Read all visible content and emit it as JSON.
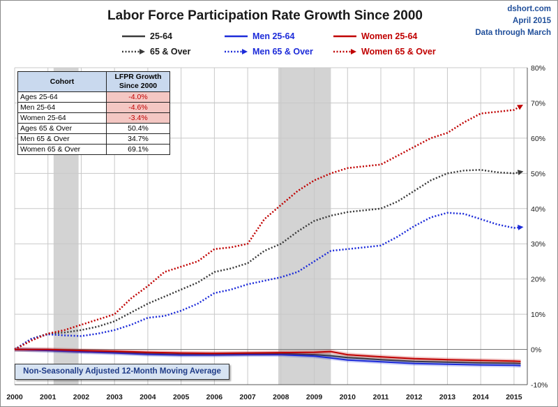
{
  "header": {
    "title": "Labor Force Participation Rate Growth Since 2000",
    "source": "dshort.com",
    "date": "April 2015",
    "data_through": "Data through March"
  },
  "colors": {
    "all": "#3a3a3a",
    "men": "#1c2bd9",
    "women": "#c00000",
    "recession": "#d3d3d3",
    "table_header": "#c9d9ee",
    "negative_cell": "#f4c7c3"
  },
  "legend": [
    {
      "label": "25-64",
      "color": "#3a3a3a",
      "style": "solid"
    },
    {
      "label": "Men 25-64",
      "color": "#1c2bd9",
      "style": "solid"
    },
    {
      "label": "Women 25-64",
      "color": "#c00000",
      "style": "solid"
    },
    {
      "label": "65 & Over",
      "color": "#3a3a3a",
      "style": "dotted"
    },
    {
      "label": "Men 65 & Over",
      "color": "#1c2bd9",
      "style": "dotted"
    },
    {
      "label": "Women 65 & Over",
      "color": "#c00000",
      "style": "dotted"
    }
  ],
  "table": {
    "headers": [
      "Cohort",
      "LFPR Growth Since 2000"
    ],
    "rows": [
      {
        "cohort": "Ages 25-64",
        "value": "-4.0%",
        "negative": true
      },
      {
        "cohort": "Men 25-64",
        "value": "-4.6%",
        "negative": true
      },
      {
        "cohort": "Women 25-64",
        "value": "-3.4%",
        "negative": true
      },
      {
        "cohort": "Ages 65 & Over",
        "value": "50.4%",
        "negative": false
      },
      {
        "cohort": "Men 65 & Over",
        "value": "34.7%",
        "negative": false
      },
      {
        "cohort": "Women 65 & Over",
        "value": "69.1%",
        "negative": false
      }
    ]
  },
  "note": "Non-Seasonally Adjusted 12-Month Moving Average",
  "chart_data": {
    "type": "line",
    "title": "Labor Force Participation Rate Growth Since 2000",
    "xlabel": "",
    "ylabel": "",
    "xlim": [
      2000,
      2015.4
    ],
    "ylim": [
      -10,
      80
    ],
    "xticks": [
      "2000",
      "2001",
      "2002",
      "2003",
      "2004",
      "2005",
      "2006",
      "2007",
      "2008",
      "2009",
      "2010",
      "2011",
      "2012",
      "2013",
      "2014",
      "2015"
    ],
    "yticks": [
      "-10%",
      "0%",
      "10%",
      "20%",
      "30%",
      "40%",
      "50%",
      "60%",
      "70%",
      "80%"
    ],
    "grid": true,
    "recessions": [
      [
        2001.17,
        2001.92
      ],
      [
        2007.92,
        2009.5
      ]
    ],
    "series": [
      {
        "name": "25-64",
        "color": "#3a3a3a",
        "style": "solid",
        "arrow": false,
        "x": [
          2000,
          2001,
          2002,
          2003,
          2004,
          2005,
          2006,
          2007,
          2008,
          2009,
          2009.5,
          2010,
          2011,
          2012,
          2013,
          2014,
          2015,
          2015.2
        ],
        "y": [
          0,
          -0.2,
          -0.5,
          -0.8,
          -1.2,
          -1.4,
          -1.4,
          -1.3,
          -1.2,
          -1.5,
          -1.8,
          -2.3,
          -2.9,
          -3.4,
          -3.6,
          -3.8,
          -3.9,
          -4.0
        ]
      },
      {
        "name": "Men 25-64",
        "color": "#1c2bd9",
        "style": "solid",
        "arrow": false,
        "x": [
          2000,
          2001,
          2002,
          2003,
          2004,
          2005,
          2006,
          2007,
          2008,
          2009,
          2009.5,
          2010,
          2011,
          2012,
          2013,
          2014,
          2015,
          2015.2
        ],
        "y": [
          0,
          -0.3,
          -0.7,
          -1.0,
          -1.4,
          -1.6,
          -1.6,
          -1.5,
          -1.5,
          -1.9,
          -2.4,
          -3.0,
          -3.5,
          -4.0,
          -4.2,
          -4.4,
          -4.5,
          -4.6
        ]
      },
      {
        "name": "Women 25-64",
        "color": "#c00000",
        "style": "solid",
        "arrow": false,
        "x": [
          2000,
          2001,
          2002,
          2003,
          2004,
          2005,
          2006,
          2007,
          2008,
          2009,
          2009.5,
          2010,
          2011,
          2012,
          2013,
          2014,
          2015,
          2015.2
        ],
        "y": [
          0,
          0,
          -0.3,
          -0.5,
          -0.8,
          -1.0,
          -1.1,
          -1.0,
          -0.9,
          -0.8,
          -0.6,
          -1.5,
          -2.1,
          -2.6,
          -2.9,
          -3.1,
          -3.3,
          -3.4
        ]
      },
      {
        "name": "65 & Over",
        "color": "#3a3a3a",
        "style": "dotted",
        "arrow": true,
        "x": [
          2000,
          2000.5,
          2001,
          2001.5,
          2002,
          2002.5,
          2003,
          2003.5,
          2004,
          2004.5,
          2005,
          2005.5,
          2006,
          2006.5,
          2007,
          2007.5,
          2008,
          2008.5,
          2009,
          2009.5,
          2010,
          2010.5,
          2011,
          2011.5,
          2012,
          2012.5,
          2013,
          2013.5,
          2014,
          2014.5,
          2015,
          2015.2
        ],
        "y": [
          0,
          3.0,
          4.5,
          4.8,
          5.5,
          6.5,
          8.0,
          10.5,
          13.0,
          15.0,
          17.0,
          19.0,
          22.0,
          23.0,
          24.5,
          28.0,
          30.0,
          33.5,
          36.5,
          38.0,
          39.0,
          39.5,
          40.0,
          42.0,
          45.0,
          48.0,
          50.0,
          50.8,
          51.0,
          50.3,
          50.0,
          50.4
        ]
      },
      {
        "name": "Men 65 & Over",
        "color": "#1c2bd9",
        "style": "dotted",
        "arrow": true,
        "x": [
          2000,
          2000.5,
          2001,
          2001.5,
          2002,
          2002.5,
          2003,
          2003.5,
          2004,
          2004.5,
          2005,
          2005.5,
          2006,
          2006.5,
          2007,
          2007.5,
          2008,
          2008.5,
          2009,
          2009.5,
          2010,
          2010.5,
          2011,
          2011.5,
          2012,
          2012.5,
          2013,
          2013.5,
          2014,
          2014.5,
          2015,
          2015.2
        ],
        "y": [
          0,
          3.0,
          4.3,
          4.0,
          3.8,
          4.5,
          5.5,
          7.0,
          9.0,
          9.5,
          11.0,
          13.0,
          16.0,
          17.0,
          18.5,
          19.5,
          20.5,
          22.0,
          25.0,
          28.0,
          28.5,
          29.0,
          29.5,
          32.0,
          35.0,
          37.5,
          38.8,
          38.5,
          37.0,
          35.5,
          34.5,
          34.7
        ]
      },
      {
        "name": "Women 65 & Over",
        "color": "#c00000",
        "style": "dotted",
        "arrow": true,
        "x": [
          2000,
          2000.5,
          2001,
          2001.5,
          2002,
          2002.5,
          2003,
          2003.5,
          2004,
          2004.5,
          2005,
          2005.5,
          2006,
          2006.5,
          2007,
          2007.5,
          2008,
          2008.5,
          2009,
          2009.5,
          2010,
          2010.5,
          2011,
          2011.5,
          2012,
          2012.5,
          2013,
          2013.5,
          2014,
          2014.5,
          2015,
          2015.2
        ],
        "y": [
          0,
          2.5,
          4.5,
          5.5,
          7.0,
          8.5,
          10.0,
          14.5,
          18.0,
          22.0,
          23.5,
          25.0,
          28.5,
          29.0,
          30.0,
          37.0,
          41.0,
          45.0,
          48.0,
          50.0,
          51.5,
          52.0,
          52.5,
          55.0,
          57.5,
          60.0,
          61.5,
          64.5,
          67.0,
          67.5,
          68.0,
          69.1
        ]
      }
    ]
  }
}
